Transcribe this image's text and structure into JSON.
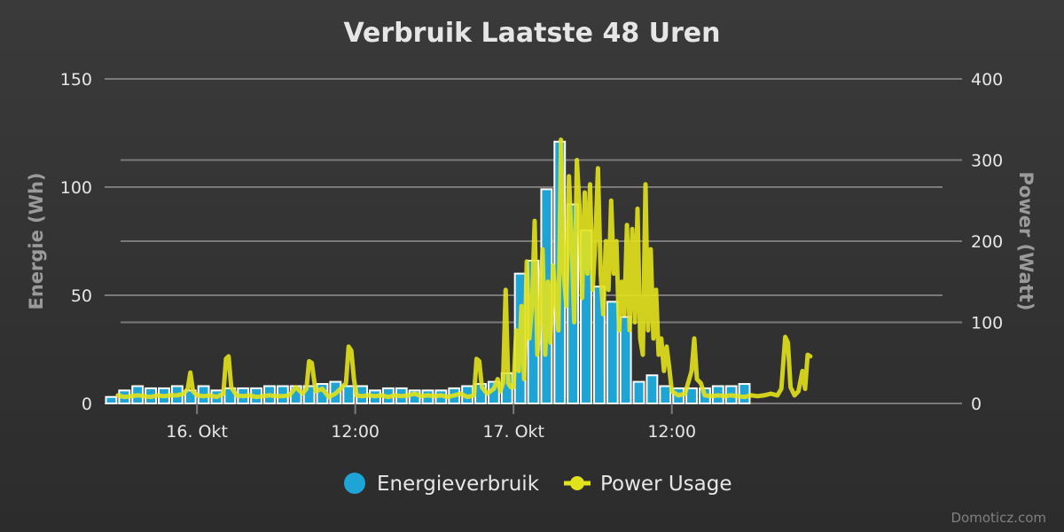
{
  "chart_data": {
    "type": "bar+line",
    "title": "Verbruik Laatste 48 Uren",
    "y_left": {
      "label": "Energie (Wh)",
      "ticks": [
        "0",
        "50",
        "100",
        "150"
      ],
      "lim": [
        0,
        150
      ]
    },
    "y_right": {
      "label": "Power (Watt)",
      "ticks": [
        "0",
        "100",
        "200",
        "300",
        "400"
      ],
      "lim": [
        0,
        400
      ]
    },
    "x_ticks": [
      "16. Okt",
      "12:00",
      "17. Okt",
      "12:00"
    ],
    "x_tick_hours": [
      24,
      36,
      48,
      60
    ],
    "x_range_hours": [
      17,
      82
    ],
    "grid": true,
    "legend_position": "bottom-center",
    "colors": {
      "bars": "#1ea5d6",
      "bar_border": "#ffffff",
      "line": "#e2e21c",
      "grid": "#7a7a7a"
    },
    "series": [
      {
        "name": "Energieverbruik",
        "type": "bar",
        "axis": "left",
        "start_hour": 17,
        "values": [
          3,
          6,
          8,
          7,
          7,
          8,
          6,
          8,
          6,
          7,
          7,
          7,
          8,
          8,
          8,
          8,
          9,
          10,
          8,
          8,
          6,
          7,
          7,
          6,
          6,
          6,
          7,
          8,
          9,
          10,
          14,
          60,
          66,
          99,
          121,
          92,
          80,
          54,
          47,
          40,
          10,
          13,
          8,
          7,
          7,
          7,
          8,
          8,
          9
        ]
      },
      {
        "name": "Power Usage",
        "type": "line",
        "axis": "right",
        "points": [
          [
            18.0,
            10
          ],
          [
            18.5,
            8
          ],
          [
            19.0,
            9
          ],
          [
            19.5,
            10
          ],
          [
            20.0,
            9
          ],
          [
            20.5,
            8
          ],
          [
            21.0,
            10
          ],
          [
            21.5,
            9
          ],
          [
            22.0,
            10
          ],
          [
            22.5,
            10
          ],
          [
            23.0,
            12
          ],
          [
            23.3,
            18
          ],
          [
            23.5,
            38
          ],
          [
            23.7,
            15
          ],
          [
            24.0,
            10
          ],
          [
            24.5,
            9
          ],
          [
            25.0,
            10
          ],
          [
            25.5,
            8
          ],
          [
            26.0,
            12
          ],
          [
            26.2,
            55
          ],
          [
            26.4,
            58
          ],
          [
            26.6,
            20
          ],
          [
            27.0,
            10
          ],
          [
            27.5,
            9
          ],
          [
            28.0,
            10
          ],
          [
            28.5,
            8
          ],
          [
            29.0,
            9
          ],
          [
            29.5,
            10
          ],
          [
            30.0,
            9
          ],
          [
            30.5,
            9
          ],
          [
            31.0,
            10
          ],
          [
            31.5,
            20
          ],
          [
            32.0,
            12
          ],
          [
            32.3,
            18
          ],
          [
            32.5,
            52
          ],
          [
            32.7,
            50
          ],
          [
            33.0,
            15
          ],
          [
            33.5,
            18
          ],
          [
            34.0,
            8
          ],
          [
            34.5,
            12
          ],
          [
            35.0,
            20
          ],
          [
            35.3,
            25
          ],
          [
            35.5,
            70
          ],
          [
            35.7,
            65
          ],
          [
            35.9,
            30
          ],
          [
            36.1,
            10
          ],
          [
            36.5,
            9
          ],
          [
            37.0,
            10
          ],
          [
            37.5,
            9
          ],
          [
            38.0,
            10
          ],
          [
            38.5,
            8
          ],
          [
            39.0,
            10
          ],
          [
            39.5,
            9
          ],
          [
            40.0,
            10
          ],
          [
            40.5,
            12
          ],
          [
            41.0,
            9
          ],
          [
            41.5,
            10
          ],
          [
            42.0,
            9
          ],
          [
            42.5,
            10
          ],
          [
            43.0,
            8
          ],
          [
            43.5,
            10
          ],
          [
            44.0,
            12
          ],
          [
            44.5,
            8
          ],
          [
            45.0,
            10
          ],
          [
            45.2,
            55
          ],
          [
            45.4,
            52
          ],
          [
            45.6,
            20
          ],
          [
            46.0,
            12
          ],
          [
            46.5,
            18
          ],
          [
            46.8,
            30
          ],
          [
            47.0,
            15
          ],
          [
            47.2,
            25
          ],
          [
            47.4,
            140
          ],
          [
            47.6,
            25
          ],
          [
            47.8,
            20
          ],
          [
            48.0,
            20
          ],
          [
            48.2,
            90
          ],
          [
            48.4,
            40
          ],
          [
            48.6,
            120
          ],
          [
            48.8,
            30
          ],
          [
            49.0,
            175
          ],
          [
            49.2,
            80
          ],
          [
            49.4,
            120
          ],
          [
            49.6,
            225
          ],
          [
            49.8,
            60
          ],
          [
            50.0,
            100
          ],
          [
            50.2,
            190
          ],
          [
            50.4,
            60
          ],
          [
            50.6,
            150
          ],
          [
            50.8,
            75
          ],
          [
            51.0,
            170
          ],
          [
            51.2,
            130
          ],
          [
            51.4,
            90
          ],
          [
            51.6,
            325
          ],
          [
            51.8,
            160
          ],
          [
            52.0,
            120
          ],
          [
            52.2,
            280
          ],
          [
            52.4,
            200
          ],
          [
            52.6,
            100
          ],
          [
            52.8,
            300
          ],
          [
            53.0,
            240
          ],
          [
            53.2,
            130
          ],
          [
            53.4,
            260
          ],
          [
            53.6,
            160
          ],
          [
            53.8,
            270
          ],
          [
            54.0,
            140
          ],
          [
            54.2,
            200
          ],
          [
            54.4,
            290
          ],
          [
            54.6,
            160
          ],
          [
            54.8,
            110
          ],
          [
            55.0,
            200
          ],
          [
            55.2,
            140
          ],
          [
            55.4,
            250
          ],
          [
            55.6,
            160
          ],
          [
            55.8,
            200
          ],
          [
            56.0,
            90
          ],
          [
            56.2,
            150
          ],
          [
            56.4,
            110
          ],
          [
            56.6,
            220
          ],
          [
            56.8,
            90
          ],
          [
            57.0,
            215
          ],
          [
            57.2,
            100
          ],
          [
            57.4,
            240
          ],
          [
            57.6,
            80
          ],
          [
            57.8,
            60
          ],
          [
            58.0,
            270
          ],
          [
            58.2,
            90
          ],
          [
            58.4,
            190
          ],
          [
            58.6,
            80
          ],
          [
            58.8,
            140
          ],
          [
            59.0,
            60
          ],
          [
            59.2,
            80
          ],
          [
            59.4,
            40
          ],
          [
            59.6,
            70
          ],
          [
            59.8,
            45
          ],
          [
            60.0,
            15
          ],
          [
            60.5,
            10
          ],
          [
            61.0,
            12
          ],
          [
            61.5,
            40
          ],
          [
            61.7,
            80
          ],
          [
            61.9,
            30
          ],
          [
            62.2,
            25
          ],
          [
            62.5,
            10
          ],
          [
            63.0,
            9
          ],
          [
            63.5,
            10
          ],
          [
            64.0,
            9
          ],
          [
            64.5,
            10
          ],
          [
            65.0,
            9
          ],
          [
            65.5,
            8
          ],
          [
            66.0,
            10
          ],
          [
            66.5,
            9
          ],
          [
            67.0,
            10
          ],
          [
            67.5,
            12
          ],
          [
            68.0,
            10
          ],
          [
            68.3,
            18
          ],
          [
            68.6,
            82
          ],
          [
            68.8,
            75
          ],
          [
            69.0,
            20
          ],
          [
            69.3,
            10
          ],
          [
            69.6,
            15
          ],
          [
            69.9,
            40
          ],
          [
            70.1,
            18
          ],
          [
            70.3,
            60
          ],
          [
            70.5,
            58
          ]
        ]
      }
    ],
    "credit": "Domoticz.com"
  }
}
